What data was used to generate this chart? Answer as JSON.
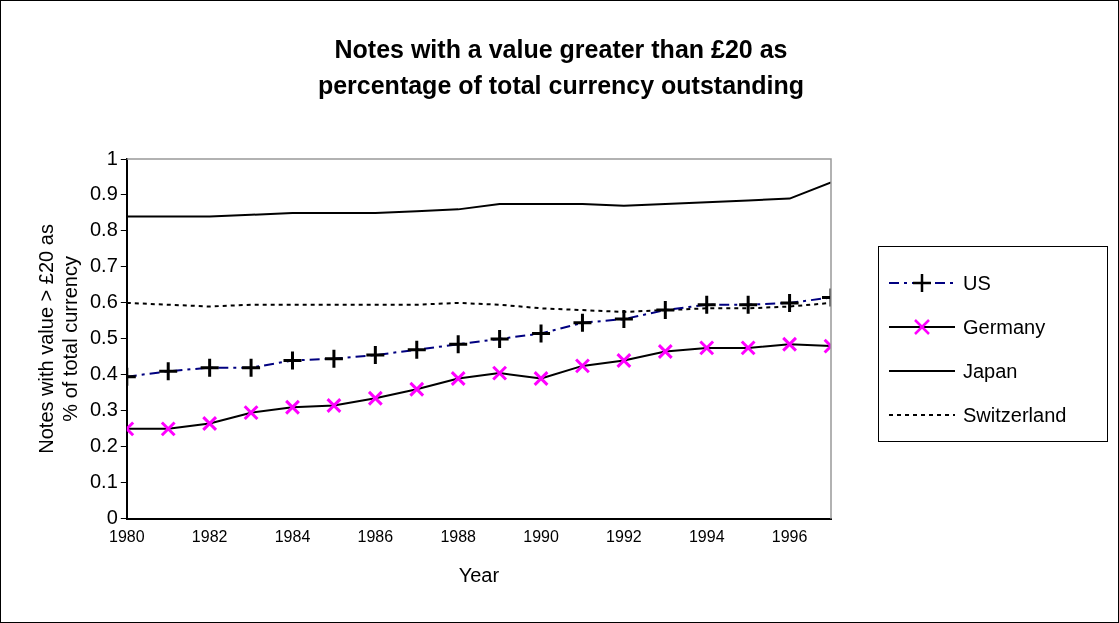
{
  "chart_data": {
    "type": "line",
    "title": "Notes with a value greater than £20 as percentage of total currency outstanding",
    "xlabel": "Year",
    "ylabel": "Notes with value > £20 as % of total currency",
    "x": [
      1980,
      1981,
      1982,
      1983,
      1984,
      1985,
      1986,
      1987,
      1988,
      1989,
      1990,
      1991,
      1992,
      1993,
      1994,
      1995,
      1996,
      1997
    ],
    "xlim": [
      1980,
      1997
    ],
    "xticks": [
      1980,
      1982,
      1984,
      1986,
      1988,
      1990,
      1992,
      1994,
      1996
    ],
    "ylim": [
      0,
      1
    ],
    "yticks": [
      0,
      0.1,
      0.2,
      0.3,
      0.4,
      0.5,
      0.6,
      0.7,
      0.8,
      0.9,
      1
    ],
    "grid": false,
    "legend": "right",
    "series": [
      {
        "name": "US",
        "color": "#000080",
        "marker": "cross",
        "line_style": "dashed",
        "values": [
          0.395,
          0.41,
          0.42,
          0.42,
          0.44,
          0.445,
          0.455,
          0.47,
          0.485,
          0.5,
          0.515,
          0.545,
          0.555,
          0.58,
          0.595,
          0.595,
          0.6,
          0.615
        ]
      },
      {
        "name": "Germany",
        "color": "#ff00ff",
        "marker": "x",
        "line_style": "solid",
        "values": [
          0.25,
          0.25,
          0.265,
          0.295,
          0.31,
          0.315,
          0.335,
          0.36,
          0.39,
          0.405,
          0.39,
          0.425,
          0.44,
          0.465,
          0.475,
          0.475,
          0.485,
          0.48
        ]
      },
      {
        "name": "Japan",
        "color": "#000000",
        "marker": "none",
        "line_style": "solid",
        "values": [
          0.84,
          0.84,
          0.84,
          0.845,
          0.85,
          0.85,
          0.85,
          0.855,
          0.86,
          0.875,
          0.875,
          0.875,
          0.87,
          0.875,
          0.88,
          0.885,
          0.89,
          0.935
        ]
      },
      {
        "name": "Switzerland",
        "color": "#000000",
        "marker": "none",
        "line_style": "dotted",
        "values": [
          0.6,
          0.595,
          0.59,
          0.595,
          0.595,
          0.595,
          0.595,
          0.595,
          0.6,
          0.595,
          0.585,
          0.58,
          0.575,
          0.58,
          0.585,
          0.585,
          0.59,
          0.6
        ]
      }
    ]
  }
}
